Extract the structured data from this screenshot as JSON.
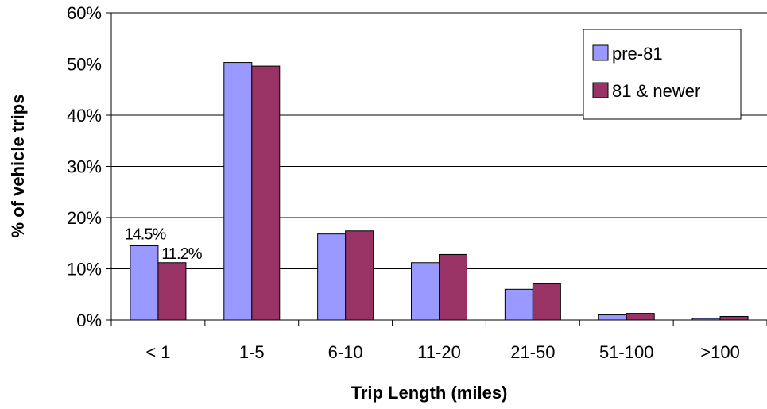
{
  "colors": {
    "pre81": "#9999ff",
    "newer": "#993366",
    "grid": "#000000",
    "background": "#ffffff"
  },
  "chart_data": {
    "type": "bar",
    "title": "",
    "xlabel": "Trip Length (miles)",
    "ylabel": "% of vehicle trips",
    "categories": [
      "< 1",
      "1-5",
      "6-10",
      "11-20",
      "21-50",
      "51-100",
      ">100"
    ],
    "ylim": [
      0,
      0.6
    ],
    "yticks": [
      "0%",
      "10%",
      "20%",
      "30%",
      "40%",
      "50%",
      "60%"
    ],
    "grid": true,
    "legend_position": "top-right",
    "series": [
      {
        "name": "pre-81",
        "values": [
          0.145,
          0.503,
          0.168,
          0.112,
          0.06,
          0.01,
          0.003
        ]
      },
      {
        "name": "81 & newer",
        "values": [
          0.112,
          0.496,
          0.174,
          0.128,
          0.072,
          0.013,
          0.007
        ]
      }
    ],
    "data_labels": [
      {
        "series": 0,
        "index": 0,
        "text": "14.5%"
      },
      {
        "series": 1,
        "index": 0,
        "text": "11.2%"
      }
    ]
  }
}
